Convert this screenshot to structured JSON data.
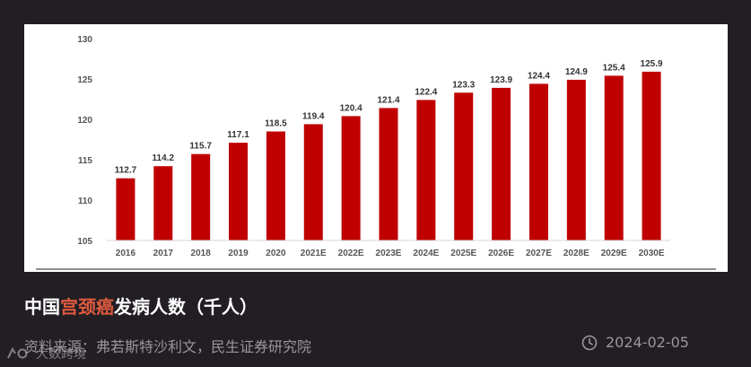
{
  "chart_data": {
    "type": "bar",
    "categories": [
      "2016",
      "2017",
      "2018",
      "2019",
      "2020",
      "2021E",
      "2022E",
      "2023E",
      "2024E",
      "2025E",
      "2026E",
      "2027E",
      "2028E",
      "2029E",
      "2030E"
    ],
    "values": [
      112.7,
      114.2,
      115.7,
      117.1,
      118.5,
      119.4,
      120.4,
      121.4,
      122.4,
      123.3,
      123.9,
      124.4,
      124.9,
      125.4,
      125.9
    ],
    "value_labels": [
      "112.7",
      "114.2",
      "115.7",
      "117.1",
      "118.5",
      "119.4",
      "120.4",
      "121.4",
      "122.4",
      "123.3",
      "123.9",
      "124.4",
      "124.9",
      "125.4",
      "125.9"
    ],
    "yticks": [
      "105",
      "110",
      "115",
      "120",
      "125",
      "130"
    ],
    "ylim": [
      105,
      130
    ],
    "bar_color": "#c00000",
    "grid": false,
    "legend": "none"
  },
  "caption": {
    "title_prefix": "中国",
    "title_highlight": "宫颈癌",
    "title_suffix": "发病人数（千人）",
    "highlight_color": "#e05a3e",
    "source": "资料来源：弗若斯特沙利文，民生证券研究院",
    "date": "2024-02-05",
    "date_icon": "clock-icon"
  },
  "watermark": {
    "text": "大数跨境",
    "icon": "logo-mark"
  }
}
